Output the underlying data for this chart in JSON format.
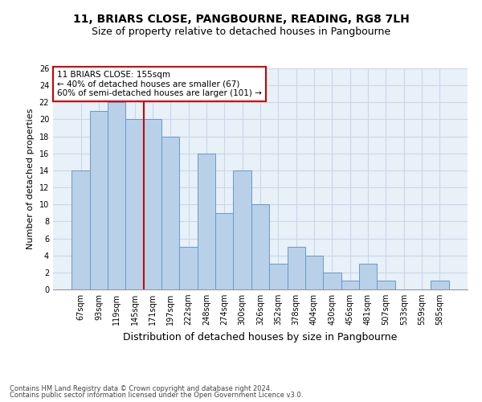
{
  "title1": "11, BRIARS CLOSE, PANGBOURNE, READING, RG8 7LH",
  "title2": "Size of property relative to detached houses in Pangbourne",
  "xlabel": "Distribution of detached houses by size in Pangbourne",
  "ylabel": "Number of detached properties",
  "categories": [
    "67sqm",
    "93sqm",
    "119sqm",
    "145sqm",
    "171sqm",
    "197sqm",
    "222sqm",
    "248sqm",
    "274sqm",
    "300sqm",
    "326sqm",
    "352sqm",
    "378sqm",
    "404sqm",
    "430sqm",
    "456sqm",
    "481sqm",
    "507sqm",
    "533sqm",
    "559sqm",
    "585sqm"
  ],
  "values": [
    14,
    21,
    22,
    20,
    20,
    18,
    5,
    16,
    9,
    14,
    10,
    3,
    5,
    4,
    2,
    1,
    3,
    1,
    0,
    0,
    1
  ],
  "bar_color": "#b8d0e8",
  "bar_edge_color": "#6699cc",
  "vline_color": "#cc0000",
  "vline_pos": 3.5,
  "annotation_title": "11 BRIARS CLOSE: 155sqm",
  "annotation_line1": "← 40% of detached houses are smaller (67)",
  "annotation_line2": "60% of semi-detached houses are larger (101) →",
  "footer1": "Contains HM Land Registry data © Crown copyright and database right 2024.",
  "footer2": "Contains public sector information licensed under the Open Government Licence v3.0.",
  "ylim": [
    0,
    26
  ],
  "yticks": [
    0,
    2,
    4,
    6,
    8,
    10,
    12,
    14,
    16,
    18,
    20,
    22,
    24,
    26
  ],
  "grid_color": "#c8d8ea",
  "bg_color": "#e8f0f8",
  "title1_fontsize": 10,
  "title2_fontsize": 9,
  "xlabel_fontsize": 9,
  "ylabel_fontsize": 8,
  "tick_fontsize": 7,
  "ann_fontsize": 7.5,
  "footer_fontsize": 6
}
